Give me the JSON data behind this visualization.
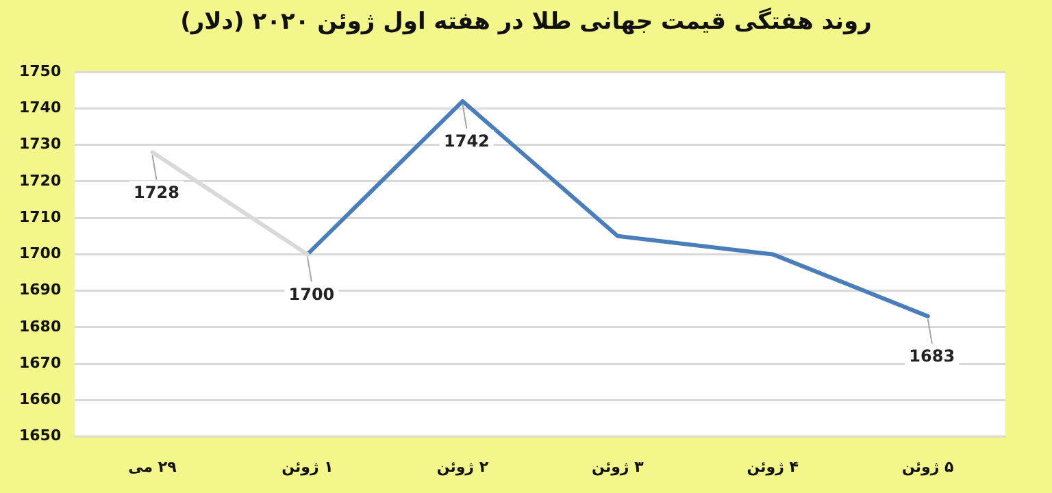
{
  "chart_data": {
    "type": "line",
    "title": "روند هفتگی قیمت جهانی طلا در هفته اول ژوئن ۲۰۲۰ (دلار)",
    "categories": [
      "۲۹ می",
      "۱ ژوئن",
      "۲ ژوئن",
      "۳ ژوئن",
      "۴ ژوئن",
      "۵ ژوئن"
    ],
    "series": [
      {
        "color": "#d9d9d9",
        "values": [
          1728,
          1700,
          null,
          null,
          null,
          null
        ],
        "value_labels": [
          "1728",
          null,
          null,
          null,
          null,
          null
        ]
      },
      {
        "color": "#4a7ebb",
        "values": [
          null,
          1700,
          1742,
          1705,
          1700,
          1683
        ],
        "value_labels": [
          null,
          "1700",
          "1742",
          null,
          null,
          "1683"
        ]
      }
    ],
    "ylim": [
      1650,
      1750
    ],
    "yticks": [
      1650,
      1660,
      1670,
      1680,
      1690,
      1700,
      1710,
      1720,
      1730,
      1740,
      1750
    ],
    "grid": "y",
    "legend": false,
    "marker": "none",
    "line_style": "solid"
  }
}
